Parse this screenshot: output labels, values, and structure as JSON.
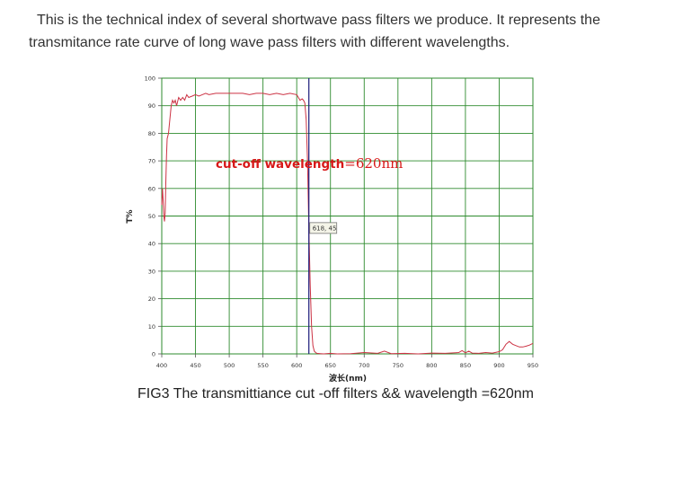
{
  "intro": {
    "line1": "This is the technical index of several shortwave pass filters we produce.  It represents the",
    "line2": "transmitance rate curve of long wave pass filters with different wavelengths."
  },
  "caption": "FIG3  The transmittiance cut -off filters && wavelength =620nm",
  "colors": {
    "grid": "#2e8b2e",
    "curve": "#cc3344",
    "cursor": "#1a1a7a",
    "annotation": "#d81818",
    "axis_text": "#333333"
  },
  "chart_data": {
    "type": "line",
    "xlabel": "波长(nm)",
    "ylabel": "T%",
    "xlim": [
      400,
      950
    ],
    "ylim": [
      0,
      100
    ],
    "grid": true,
    "x_ticks": [
      "400",
      "450",
      "500",
      "550",
      "600",
      "650",
      "700",
      "750",
      "800",
      "850",
      "900",
      "950"
    ],
    "y_ticks": [
      "0",
      "10",
      "20",
      "30",
      "40",
      "50",
      "60",
      "70",
      "80",
      "90",
      "100"
    ],
    "annotation": {
      "text_bold": "cut-off wavelength",
      "text_value": "=620nm"
    },
    "cursor": {
      "x": 618,
      "label": "618, 45"
    },
    "series": [
      {
        "x": [
          400,
          401,
          402,
          403,
          404,
          405,
          406,
          407,
          408,
          410,
          412,
          414,
          416,
          418,
          420,
          422,
          425,
          428,
          431,
          434,
          437,
          440,
          445,
          450,
          455,
          460,
          465,
          470,
          480,
          490,
          500,
          510,
          520,
          530,
          540,
          550,
          560,
          570,
          580,
          590,
          600,
          605,
          608,
          610,
          612,
          614,
          616,
          618,
          620,
          622,
          624,
          626,
          628,
          630,
          635,
          640,
          650,
          660,
          680,
          700,
          720,
          730,
          740,
          760,
          780,
          800,
          820,
          840,
          845,
          850,
          855,
          860,
          870,
          880,
          890,
          900,
          905,
          910,
          915,
          920,
          925,
          930,
          935,
          940,
          945,
          950
        ],
        "y": [
          54,
          60,
          56,
          50,
          48,
          51,
          62,
          72,
          78,
          80,
          85,
          90,
          92,
          91,
          92,
          90,
          93,
          92,
          93,
          92,
          94,
          93,
          93.5,
          94,
          93.5,
          94,
          94.5,
          94,
          94.5,
          94.5,
          94.5,
          94.5,
          94.5,
          94,
          94.5,
          94.5,
          94,
          94.5,
          94,
          94.5,
          94,
          92,
          92.5,
          92,
          91,
          85,
          70,
          45,
          25,
          10,
          3,
          1,
          0.5,
          0.2,
          0.1,
          0,
          0.2,
          0,
          0.1,
          0.5,
          0.2,
          1,
          0.1,
          0.2,
          0,
          0.3,
          0.2,
          0.5,
          1.2,
          0.4,
          1,
          0.3,
          0.2,
          0.5,
          0.3,
          0.8,
          1.5,
          3.5,
          4.5,
          3.5,
          3,
          2.5,
          2.5,
          2.8,
          3.2,
          3.8
        ]
      }
    ]
  }
}
